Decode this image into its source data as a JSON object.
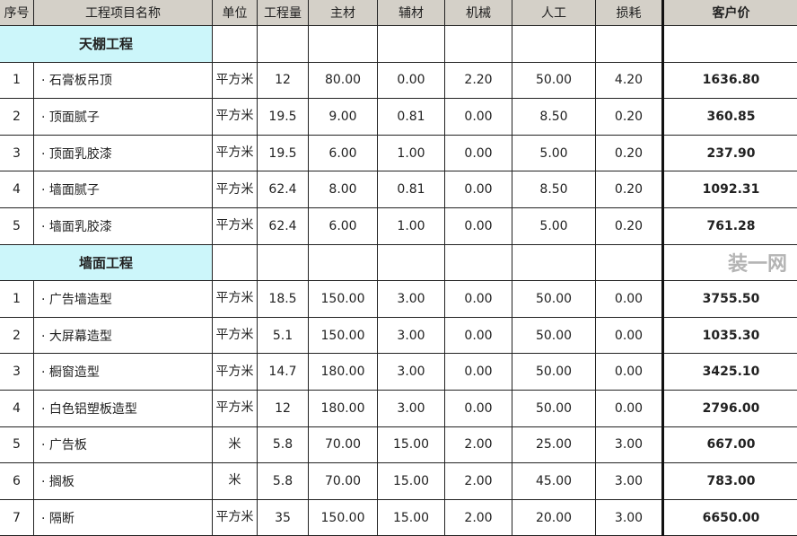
{
  "headers": [
    "序号",
    "工程项目名称",
    "单位",
    "工程量",
    "主材",
    "辅材",
    "机械",
    "人工",
    "损耗",
    "客户价"
  ],
  "sections": [
    {
      "title": "天棚工程",
      "rows": [
        [
          "1",
          "· 石膏板吊顶",
          "平方米",
          "12",
          "80.00",
          "0.00",
          "2.20",
          "50.00",
          "4.20",
          "1636.80"
        ],
        [
          "2",
          "· 顶面腻子",
          "平方米",
          "19.5",
          "9.00",
          "0.81",
          "0.00",
          "8.50",
          "0.20",
          "360.85"
        ],
        [
          "3",
          "· 顶面乳胶漆",
          "平方米",
          "19.5",
          "6.00",
          "1.00",
          "0.00",
          "5.00",
          "0.20",
          "237.90"
        ],
        [
          "4",
          "· 墙面腻子",
          "平方米",
          "62.4",
          "8.00",
          "0.81",
          "0.00",
          "8.50",
          "0.20",
          "1092.31"
        ],
        [
          "5",
          "· 墙面乳胶漆",
          "平方米",
          "62.4",
          "6.00",
          "1.00",
          "0.00",
          "5.00",
          "0.20",
          "761.28"
        ]
      ]
    },
    {
      "title": "墙面工程",
      "rows": [
        [
          "1",
          "· 广告墙造型",
          "平方米",
          "18.5",
          "150.00",
          "3.00",
          "0.00",
          "50.00",
          "0.00",
          "3755.50"
        ],
        [
          "2",
          "· 大屏幕造型",
          "平方米",
          "5.1",
          "150.00",
          "3.00",
          "0.00",
          "50.00",
          "0.00",
          "1035.30"
        ],
        [
          "3",
          "· 橱窗造型",
          "平方米",
          "14.7",
          "180.00",
          "3.00",
          "0.00",
          "50.00",
          "0.00",
          "3425.10"
        ],
        [
          "4",
          "· 白色铝塑板造型",
          "平方米",
          "12",
          "180.00",
          "3.00",
          "0.00",
          "50.00",
          "0.00",
          "2796.00"
        ],
        [
          "5",
          "· 广告板",
          "米",
          "5.8",
          "70.00",
          "15.00",
          "2.00",
          "25.00",
          "3.00",
          "667.00"
        ],
        [
          "6",
          "· 搁板",
          "米",
          "5.8",
          "70.00",
          "15.00",
          "2.00",
          "45.00",
          "3.00",
          "783.00"
        ],
        [
          "7",
          "· 隔断",
          "平方米",
          "35",
          "150.00",
          "15.00",
          "2.00",
          "20.00",
          "3.00",
          "6650.00"
        ]
      ]
    }
  ],
  "watermark": "装一网",
  "colors": {
    "header_bg": "#d4d0c8",
    "section_bg": "#ccf6fa"
  }
}
